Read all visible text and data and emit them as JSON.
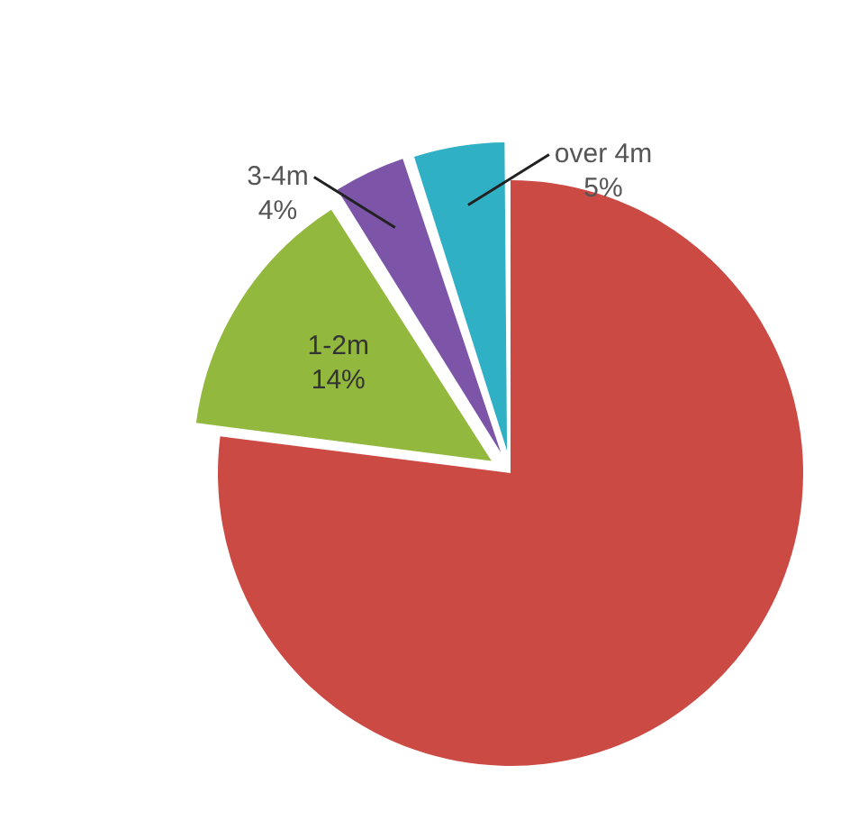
{
  "chart_data": {
    "type": "pie",
    "categories": [
      null,
      "1-2m",
      "3-4m",
      "over 4m"
    ],
    "values": [
      77,
      14,
      4,
      5
    ],
    "colors": [
      "#cc4a44",
      "#93b83e",
      "#7c54a8",
      "#2fb0c4"
    ],
    "value_labels": [
      null,
      "14%",
      "4%",
      "5%"
    ],
    "legend": false
  }
}
